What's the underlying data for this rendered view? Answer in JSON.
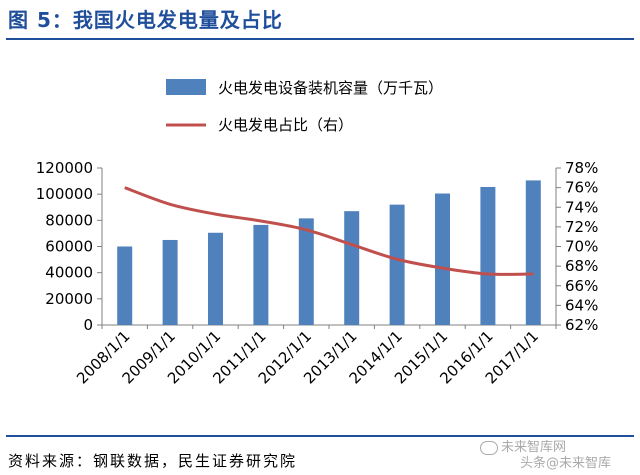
{
  "figure": {
    "title": "图 5：我国火电发电量及占比",
    "source": "资料来源：钢联数据，民生证券研究院",
    "watermark_line1": "未来智库网",
    "watermark_line2": "头条@未来智库"
  },
  "colors": {
    "bar": "#4f81bd",
    "line": "#c0504d",
    "title": "#1f4e9a"
  },
  "chart_data": {
    "type": "bar",
    "categories": [
      "2008/1/1",
      "2009/1/1",
      "2010/1/1",
      "2011/1/1",
      "2012/1/1",
      "2013/1/1",
      "2014/1/1",
      "2015/1/1",
      "2016/1/1",
      "2017/1/1"
    ],
    "series": [
      {
        "name": "火电发电设备装机容量（万千瓦）",
        "type": "bar",
        "axis": "left",
        "values": [
          60000,
          65000,
          70500,
          76500,
          81500,
          87000,
          92000,
          100500,
          105500,
          110500
        ]
      },
      {
        "name": "火电发电占比（右）",
        "type": "line",
        "axis": "right",
        "values": [
          76.0,
          74.3,
          73.3,
          72.6,
          71.7,
          70.2,
          68.7,
          67.8,
          67.2,
          67.2
        ]
      }
    ],
    "y_left": {
      "min": 0,
      "max": 120000,
      "ticks": [
        "0",
        "20000",
        "40000",
        "60000",
        "80000",
        "100000",
        "120000"
      ]
    },
    "y_right": {
      "min": 62,
      "max": 78,
      "ticks": [
        "62%",
        "64%",
        "66%",
        "68%",
        "70%",
        "72%",
        "74%",
        "76%",
        "78%"
      ]
    },
    "legend": "top"
  }
}
